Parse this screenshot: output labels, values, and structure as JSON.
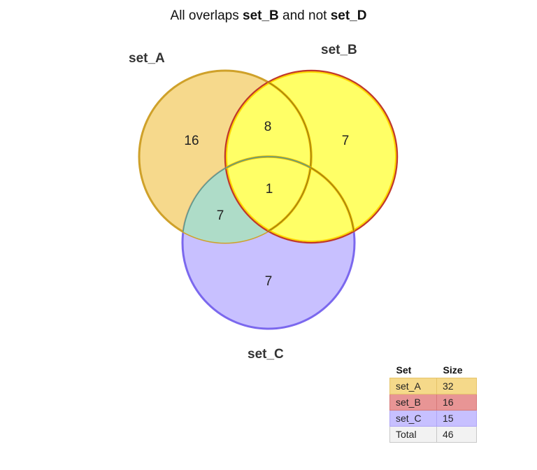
{
  "title": {
    "prefix": "All overlaps ",
    "set_1": "set_B",
    "middle": " and not ",
    "set_2": "set_D"
  },
  "sets": [
    {
      "id": "A",
      "name": "set_A",
      "size": "32",
      "fill": "#f0c040",
      "stroke": "#cfa12a",
      "legend_color": "#f5d98a"
    },
    {
      "id": "B",
      "name": "set_B",
      "size": "16",
      "fill": "#ffff00",
      "stroke": "#c0392b",
      "legend_color": "#e89595"
    },
    {
      "id": "C",
      "name": "set_C",
      "size": "15",
      "fill": "#9b8cff",
      "stroke": "#7b68ee",
      "legend_color": "#c7c0ff"
    }
  ],
  "regions": [
    {
      "id": "A_only",
      "label": "16"
    },
    {
      "id": "AB",
      "label": "8"
    },
    {
      "id": "B_only",
      "label": "7"
    },
    {
      "id": "ABC",
      "label": "1"
    },
    {
      "id": "AC",
      "label": "7"
    },
    {
      "id": "C_only",
      "label": "7"
    }
  ],
  "highlight": {
    "fill": "#ffff66",
    "stroke": "#e6b800",
    "ac_fill": "#aedcc8"
  },
  "legend": {
    "header_set": "Set",
    "header_size": "Size",
    "total_label": "Total",
    "total_value": "46",
    "total_color": "#f2f2f2"
  }
}
